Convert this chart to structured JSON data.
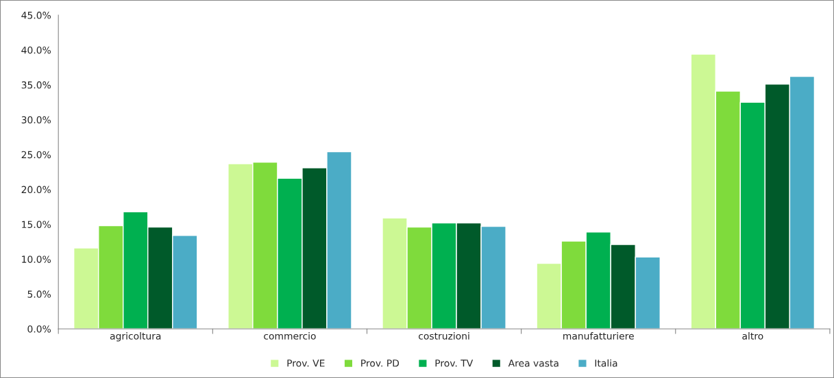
{
  "chart_data": {
    "type": "bar",
    "categories": [
      "agricoltura",
      "commercio",
      "costruzioni",
      "manufatturiere",
      "altro"
    ],
    "series": [
      {
        "name": "Prov. VE",
        "color": "#ccf894",
        "values": [
          11.6,
          23.7,
          15.9,
          9.4,
          39.4
        ]
      },
      {
        "name": "Prov. PD",
        "color": "#7fdb3c",
        "values": [
          14.8,
          23.9,
          14.6,
          12.6,
          34.1
        ]
      },
      {
        "name": "Prov. TV",
        "color": "#00b050",
        "values": [
          16.8,
          21.6,
          15.2,
          13.9,
          32.5
        ]
      },
      {
        "name": "Area vasta",
        "color": "#005a2a",
        "values": [
          14.6,
          23.1,
          15.2,
          12.1,
          35.1
        ]
      },
      {
        "name": "Italia",
        "color": "#4bacc6",
        "values": [
          13.4,
          25.4,
          14.7,
          10.3,
          36.2
        ]
      }
    ],
    "ylim": [
      0,
      45
    ],
    "yticks": [
      {
        "value": 0,
        "label": "0.0%"
      },
      {
        "value": 5,
        "label": "5.0%"
      },
      {
        "value": 10,
        "label": "10.0%"
      },
      {
        "value": 15,
        "label": "15.0%"
      },
      {
        "value": 20,
        "label": "20.0%"
      },
      {
        "value": 25,
        "label": "25.0%"
      },
      {
        "value": 30,
        "label": "30.0%"
      },
      {
        "value": 35,
        "label": "35.0%"
      },
      {
        "value": 40,
        "label": "40.0%"
      },
      {
        "value": 45,
        "label": "45.0%"
      }
    ],
    "grid": false,
    "legend": "bottom"
  }
}
